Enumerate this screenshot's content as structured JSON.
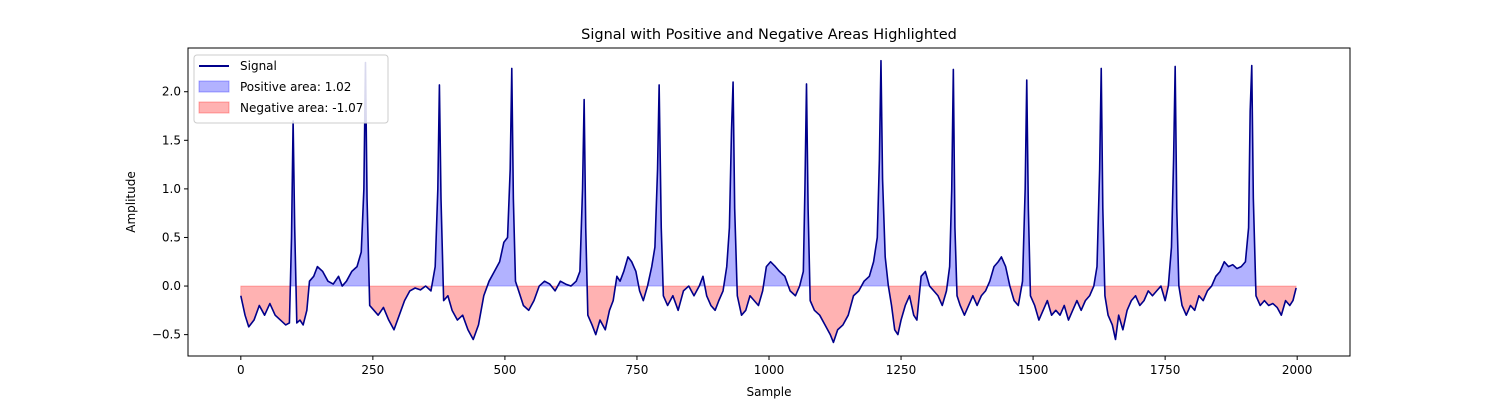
{
  "chart_data": {
    "type": "line",
    "title": "Signal with Positive and Negative Areas Highlighted",
    "xlabel": "Sample",
    "ylabel": "Amplitude",
    "xlim": [
      -100,
      2100
    ],
    "ylim": [
      -0.72,
      2.45
    ],
    "xticks": [
      0,
      250,
      500,
      750,
      1000,
      1250,
      1500,
      1750,
      2000
    ],
    "yticks": [
      -0.5,
      0.0,
      0.5,
      1.0,
      1.5,
      2.0
    ],
    "ytick_labels": [
      "−0.5",
      "0.0",
      "0.5",
      "1.0",
      "1.5",
      "2.0"
    ],
    "grid": false,
    "legend_position": "top-left",
    "series": [
      {
        "name": "Signal",
        "kind": "line",
        "color": "#00008b"
      },
      {
        "name": "Positive area: 1.02",
        "kind": "fill",
        "color": "#0000ff",
        "alpha": 0.3
      },
      {
        "name": "Negative area: -1.07",
        "kind": "fill",
        "color": "#ff0000",
        "alpha": 0.3
      }
    ],
    "signal_points": [
      [
        0,
        -0.1
      ],
      [
        8,
        -0.3
      ],
      [
        15,
        -0.42
      ],
      [
        25,
        -0.35
      ],
      [
        35,
        -0.2
      ],
      [
        45,
        -0.3
      ],
      [
        55,
        -0.18
      ],
      [
        65,
        -0.3
      ],
      [
        75,
        -0.35
      ],
      [
        85,
        -0.4
      ],
      [
        92,
        -0.38
      ],
      [
        96,
        0.5
      ],
      [
        99,
        1.7
      ],
      [
        102,
        0.6
      ],
      [
        106,
        -0.38
      ],
      [
        112,
        -0.35
      ],
      [
        118,
        -0.4
      ],
      [
        125,
        -0.25
      ],
      [
        130,
        0.05
      ],
      [
        138,
        0.1
      ],
      [
        145,
        0.2
      ],
      [
        155,
        0.15
      ],
      [
        165,
        0.05
      ],
      [
        175,
        0.02
      ],
      [
        185,
        0.1
      ],
      [
        192,
        0.0
      ],
      [
        200,
        0.05
      ],
      [
        210,
        0.15
      ],
      [
        220,
        0.2
      ],
      [
        228,
        0.35
      ],
      [
        233,
        1.0
      ],
      [
        236,
        2.3
      ],
      [
        239,
        0.9
      ],
      [
        244,
        -0.2
      ],
      [
        252,
        -0.25
      ],
      [
        260,
        -0.3
      ],
      [
        270,
        -0.22
      ],
      [
        280,
        -0.35
      ],
      [
        290,
        -0.45
      ],
      [
        300,
        -0.3
      ],
      [
        310,
        -0.15
      ],
      [
        320,
        -0.05
      ],
      [
        330,
        -0.02
      ],
      [
        340,
        -0.04
      ],
      [
        350,
        0.0
      ],
      [
        360,
        -0.05
      ],
      [
        368,
        0.2
      ],
      [
        373,
        1.0
      ],
      [
        376,
        2.07
      ],
      [
        379,
        0.9
      ],
      [
        384,
        -0.15
      ],
      [
        392,
        -0.1
      ],
      [
        400,
        -0.25
      ],
      [
        410,
        -0.35
      ],
      [
        420,
        -0.3
      ],
      [
        430,
        -0.45
      ],
      [
        440,
        -0.55
      ],
      [
        450,
        -0.4
      ],
      [
        460,
        -0.1
      ],
      [
        470,
        0.05
      ],
      [
        480,
        0.15
      ],
      [
        490,
        0.25
      ],
      [
        498,
        0.45
      ],
      [
        505,
        0.5
      ],
      [
        510,
        1.2
      ],
      [
        513,
        2.24
      ],
      [
        516,
        0.9
      ],
      [
        520,
        0.05
      ],
      [
        526,
        -0.05
      ],
      [
        535,
        -0.2
      ],
      [
        545,
        -0.25
      ],
      [
        555,
        -0.15
      ],
      [
        565,
        0.0
      ],
      [
        575,
        0.05
      ],
      [
        585,
        0.02
      ],
      [
        595,
        -0.05
      ],
      [
        605,
        0.05
      ],
      [
        615,
        0.02
      ],
      [
        625,
        0.0
      ],
      [
        635,
        0.05
      ],
      [
        642,
        0.15
      ],
      [
        647,
        1.0
      ],
      [
        650,
        1.92
      ],
      [
        653,
        0.6
      ],
      [
        657,
        -0.3
      ],
      [
        665,
        -0.4
      ],
      [
        672,
        -0.5
      ],
      [
        680,
        -0.35
      ],
      [
        690,
        -0.45
      ],
      [
        698,
        -0.25
      ],
      [
        705,
        -0.15
      ],
      [
        712,
        0.1
      ],
      [
        718,
        0.05
      ],
      [
        725,
        0.15
      ],
      [
        733,
        0.3
      ],
      [
        740,
        0.25
      ],
      [
        748,
        0.15
      ],
      [
        755,
        -0.05
      ],
      [
        762,
        -0.15
      ],
      [
        770,
        0.0
      ],
      [
        778,
        0.2
      ],
      [
        784,
        0.4
      ],
      [
        789,
        1.2
      ],
      [
        792,
        2.07
      ],
      [
        796,
        0.6
      ],
      [
        800,
        -0.1
      ],
      [
        808,
        -0.2
      ],
      [
        818,
        -0.1
      ],
      [
        828,
        -0.25
      ],
      [
        838,
        -0.05
      ],
      [
        848,
        0.0
      ],
      [
        858,
        -0.1
      ],
      [
        868,
        0.0
      ],
      [
        875,
        0.1
      ],
      [
        882,
        -0.1
      ],
      [
        890,
        -0.2
      ],
      [
        898,
        -0.25
      ],
      [
        905,
        -0.15
      ],
      [
        913,
        -0.05
      ],
      [
        920,
        0.2
      ],
      [
        925,
        0.6
      ],
      [
        929,
        1.6
      ],
      [
        932,
        2.1
      ],
      [
        935,
        0.8
      ],
      [
        940,
        -0.1
      ],
      [
        948,
        -0.3
      ],
      [
        956,
        -0.25
      ],
      [
        964,
        -0.1
      ],
      [
        972,
        -0.15
      ],
      [
        980,
        -0.2
      ],
      [
        988,
        -0.05
      ],
      [
        995,
        0.2
      ],
      [
        1003,
        0.25
      ],
      [
        1012,
        0.2
      ],
      [
        1020,
        0.15
      ],
      [
        1030,
        0.1
      ],
      [
        1040,
        -0.05
      ],
      [
        1050,
        -0.1
      ],
      [
        1058,
        0.0
      ],
      [
        1065,
        0.15
      ],
      [
        1068,
        1.0
      ],
      [
        1071,
        2.08
      ],
      [
        1074,
        0.8
      ],
      [
        1078,
        -0.15
      ],
      [
        1086,
        -0.25
      ],
      [
        1096,
        -0.3
      ],
      [
        1106,
        -0.4
      ],
      [
        1116,
        -0.5
      ],
      [
        1122,
        -0.58
      ],
      [
        1130,
        -0.45
      ],
      [
        1140,
        -0.4
      ],
      [
        1150,
        -0.3
      ],
      [
        1160,
        -0.1
      ],
      [
        1170,
        -0.05
      ],
      [
        1180,
        0.05
      ],
      [
        1190,
        0.1
      ],
      [
        1198,
        0.25
      ],
      [
        1205,
        0.5
      ],
      [
        1209,
        1.3
      ],
      [
        1212,
        2.32
      ],
      [
        1215,
        1.1
      ],
      [
        1220,
        0.3
      ],
      [
        1226,
        0.0
      ],
      [
        1232,
        -0.2
      ],
      [
        1238,
        -0.45
      ],
      [
        1244,
        -0.5
      ],
      [
        1250,
        -0.35
      ],
      [
        1258,
        -0.2
      ],
      [
        1266,
        -0.1
      ],
      [
        1274,
        -0.3
      ],
      [
        1280,
        -0.35
      ],
      [
        1288,
        0.1
      ],
      [
        1296,
        0.15
      ],
      [
        1304,
        0.0
      ],
      [
        1312,
        -0.05
      ],
      [
        1320,
        -0.1
      ],
      [
        1328,
        -0.2
      ],
      [
        1336,
        -0.05
      ],
      [
        1342,
        0.2
      ],
      [
        1346,
        1.0
      ],
      [
        1349,
        2.23
      ],
      [
        1352,
        0.6
      ],
      [
        1356,
        -0.1
      ],
      [
        1362,
        -0.2
      ],
      [
        1370,
        -0.3
      ],
      [
        1378,
        -0.2
      ],
      [
        1386,
        -0.1
      ],
      [
        1394,
        -0.2
      ],
      [
        1402,
        -0.1
      ],
      [
        1410,
        -0.05
      ],
      [
        1418,
        0.05
      ],
      [
        1426,
        0.2
      ],
      [
        1434,
        0.25
      ],
      [
        1440,
        0.3
      ],
      [
        1448,
        0.2
      ],
      [
        1456,
        0.0
      ],
      [
        1464,
        -0.15
      ],
      [
        1472,
        -0.2
      ],
      [
        1480,
        0.05
      ],
      [
        1485,
        1.0
      ],
      [
        1488,
        2.12
      ],
      [
        1491,
        0.8
      ],
      [
        1495,
        -0.1
      ],
      [
        1503,
        -0.2
      ],
      [
        1511,
        -0.35
      ],
      [
        1519,
        -0.25
      ],
      [
        1527,
        -0.15
      ],
      [
        1535,
        -0.3
      ],
      [
        1543,
        -0.25
      ],
      [
        1551,
        -0.3
      ],
      [
        1559,
        -0.2
      ],
      [
        1567,
        -0.35
      ],
      [
        1575,
        -0.25
      ],
      [
        1583,
        -0.15
      ],
      [
        1591,
        -0.25
      ],
      [
        1599,
        -0.15
      ],
      [
        1607,
        -0.1
      ],
      [
        1615,
        0.0
      ],
      [
        1621,
        0.2
      ],
      [
        1626,
        1.2
      ],
      [
        1629,
        2.24
      ],
      [
        1632,
        0.8
      ],
      [
        1636,
        -0.1
      ],
      [
        1642,
        -0.3
      ],
      [
        1650,
        -0.4
      ],
      [
        1656,
        -0.55
      ],
      [
        1662,
        -0.3
      ],
      [
        1670,
        -0.45
      ],
      [
        1678,
        -0.25
      ],
      [
        1686,
        -0.15
      ],
      [
        1694,
        -0.1
      ],
      [
        1702,
        -0.2
      ],
      [
        1710,
        -0.15
      ],
      [
        1718,
        -0.05
      ],
      [
        1726,
        -0.1
      ],
      [
        1734,
        -0.05
      ],
      [
        1742,
        0.0
      ],
      [
        1750,
        -0.15
      ],
      [
        1756,
        0.0
      ],
      [
        1762,
        0.4
      ],
      [
        1766,
        1.3
      ],
      [
        1769,
        2.26
      ],
      [
        1772,
        0.8
      ],
      [
        1776,
        0.0
      ],
      [
        1782,
        -0.2
      ],
      [
        1790,
        -0.3
      ],
      [
        1798,
        -0.2
      ],
      [
        1806,
        -0.25
      ],
      [
        1814,
        -0.1
      ],
      [
        1822,
        -0.15
      ],
      [
        1830,
        -0.05
      ],
      [
        1838,
        0.0
      ],
      [
        1846,
        0.1
      ],
      [
        1854,
        0.15
      ],
      [
        1862,
        0.25
      ],
      [
        1870,
        0.2
      ],
      [
        1878,
        0.22
      ],
      [
        1886,
        0.18
      ],
      [
        1894,
        0.2
      ],
      [
        1902,
        0.25
      ],
      [
        1908,
        0.6
      ],
      [
        1911,
        1.8
      ],
      [
        1914,
        2.27
      ],
      [
        1917,
        0.9
      ],
      [
        1922,
        -0.1
      ],
      [
        1930,
        -0.2
      ],
      [
        1938,
        -0.15
      ],
      [
        1946,
        -0.2
      ],
      [
        1954,
        -0.18
      ],
      [
        1962,
        -0.22
      ],
      [
        1970,
        -0.3
      ],
      [
        1978,
        -0.15
      ],
      [
        1986,
        -0.2
      ],
      [
        1992,
        -0.15
      ],
      [
        1998,
        -0.02
      ]
    ]
  }
}
